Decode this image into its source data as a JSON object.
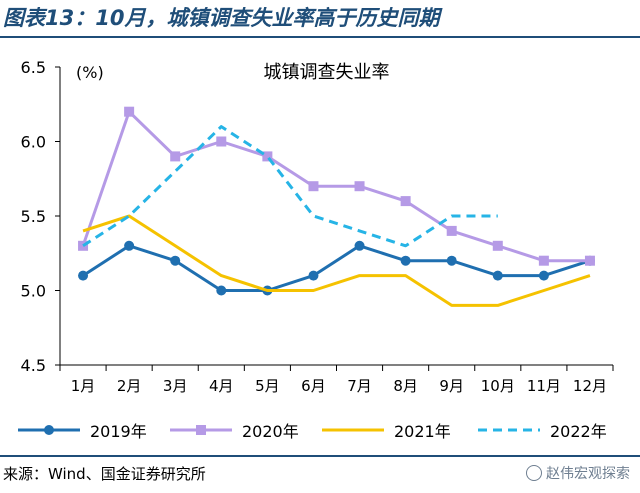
{
  "header": {
    "title": "图表13：10月，城镇调查失业率高于历史同期"
  },
  "footer": {
    "source": "来源：Wind、国金证券研究所",
    "watermark": "赵伟宏观探索"
  },
  "colors": {
    "brand": "#1f4e79",
    "axis": "#000000",
    "series_2019": "#1f6fb0",
    "series_2020": "#b59ae6",
    "series_2021": "#f5c200",
    "series_2022": "#26b4e6"
  },
  "chart_data": {
    "type": "line",
    "title": "城镇调查失业率",
    "ylabel": "(%)",
    "xlabel": "",
    "categories": [
      "1月",
      "2月",
      "3月",
      "4月",
      "5月",
      "6月",
      "7月",
      "8月",
      "9月",
      "10月",
      "11月",
      "12月"
    ],
    "ylim": [
      4.5,
      6.5
    ],
    "yticks": [
      "4.5",
      "5.0",
      "5.5",
      "6.0",
      "6.5"
    ],
    "grid": false,
    "legend_position": "bottom",
    "series": [
      {
        "name": "2019年",
        "style": "solid-circle",
        "color": "#1f6fb0",
        "values": [
          5.1,
          5.3,
          5.2,
          5.0,
          5.0,
          5.1,
          5.3,
          5.2,
          5.2,
          5.1,
          5.1,
          5.2
        ]
      },
      {
        "name": "2020年",
        "style": "solid-square",
        "color": "#b59ae6",
        "values": [
          5.3,
          6.2,
          5.9,
          6.0,
          5.9,
          5.7,
          5.7,
          5.6,
          5.4,
          5.3,
          5.2,
          5.2
        ]
      },
      {
        "name": "2021年",
        "style": "solid",
        "color": "#f5c200",
        "values": [
          5.4,
          5.5,
          5.3,
          5.1,
          5.0,
          5.0,
          5.1,
          5.1,
          4.9,
          4.9,
          5.0,
          5.1
        ]
      },
      {
        "name": "2022年",
        "style": "dashed",
        "color": "#26b4e6",
        "values": [
          5.3,
          5.5,
          5.8,
          6.1,
          5.9,
          5.5,
          5.4,
          5.3,
          5.5,
          5.5,
          null,
          null
        ]
      }
    ]
  }
}
